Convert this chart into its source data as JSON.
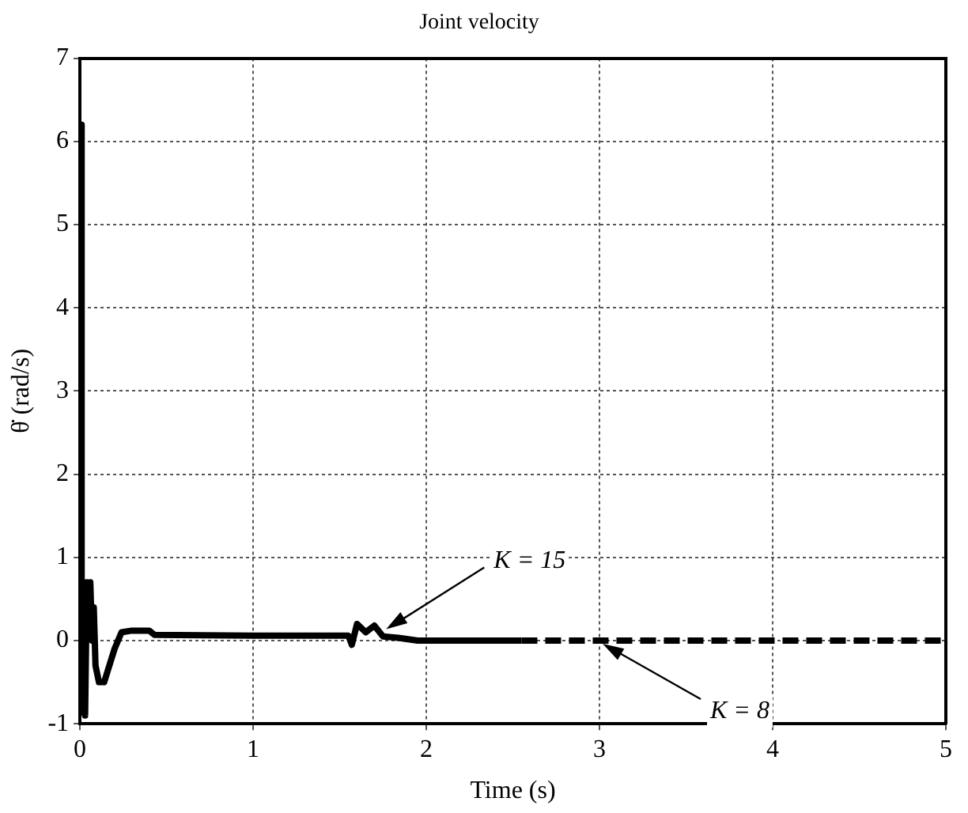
{
  "chart_data": {
    "type": "line",
    "title": "Joint velocity",
    "xlabel": "Time (s)",
    "ylabel": "θ̇ (rad/s)",
    "xlim": [
      0,
      5
    ],
    "xticks": [
      0,
      1,
      2,
      3,
      4,
      5
    ],
    "ylim": [
      -1,
      7
    ],
    "yticks": [
      -1,
      0,
      1,
      2,
      3,
      4,
      5,
      6,
      7
    ],
    "grid": true,
    "legend": false,
    "marker": "none",
    "series": [
      {
        "color": "#000000",
        "line_style": "solid",
        "x": [
          0,
          0.005,
          0.01,
          0.02,
          0.03,
          0.04,
          0.05,
          0.06,
          0.07,
          0.08,
          0.09,
          0.11,
          0.14,
          0.17,
          0.2,
          0.24,
          0.3,
          0.4,
          0.43,
          1.0,
          1.55,
          1.57,
          1.6,
          1.65,
          1.7,
          1.75,
          1.85,
          1.95,
          2.55
        ],
        "values": [
          -0.9,
          6.2,
          -0.8,
          0.6,
          -0.9,
          0.7,
          0.1,
          0.7,
          0,
          0.4,
          -0.3,
          -0.5,
          -0.5,
          -0.3,
          -0.1,
          0.1,
          0.12,
          0.12,
          0.07,
          0.06,
          0.06,
          -0.05,
          0.2,
          0.1,
          0.18,
          0.05,
          0.03,
          0,
          0
        ]
      },
      {
        "color": "#000000",
        "line_style": "dashed",
        "x": [
          2.55,
          5
        ],
        "values": [
          0,
          0
        ]
      }
    ],
    "annotations": [
      {
        "text": "K = 15",
        "x": 1.75,
        "y": 0.1
      },
      {
        "text": "K = 8",
        "x": 3.0,
        "y": 0
      }
    ]
  }
}
